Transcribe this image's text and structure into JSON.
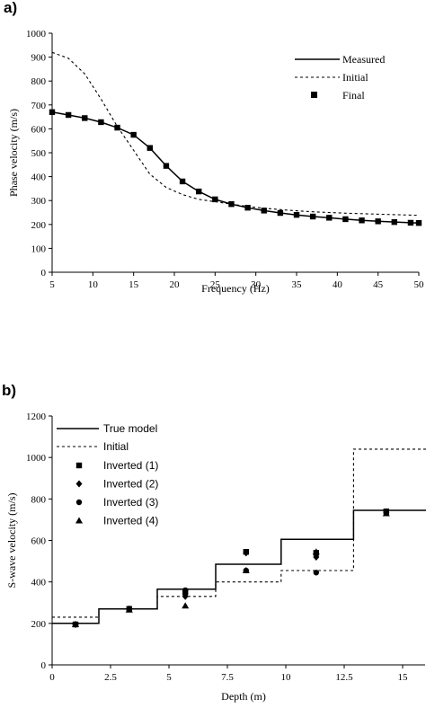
{
  "chart_data": [
    {
      "type": "line",
      "panel_label": "a)",
      "title": "",
      "xlabel": "Frequency (Hz)",
      "ylabel": "Phase velocity (m/s)",
      "xlim": [
        5,
        50
      ],
      "ylim": [
        0,
        1000
      ],
      "xticks": [
        5,
        10,
        15,
        20,
        25,
        30,
        35,
        40,
        45,
        50
      ],
      "yticks": [
        0,
        100,
        200,
        300,
        400,
        500,
        600,
        700,
        800,
        900,
        1000
      ],
      "grid": false,
      "legend_position": "top-right",
      "series": [
        {
          "name": "Measured",
          "style": "solid",
          "x": [
            5,
            7,
            9,
            11,
            13,
            15,
            17,
            19,
            21,
            23,
            25,
            27,
            29,
            31,
            33,
            35,
            37,
            39,
            41,
            43,
            45,
            47,
            49,
            50
          ],
          "y": [
            670,
            658,
            645,
            628,
            605,
            575,
            520,
            445,
            380,
            338,
            305,
            285,
            270,
            258,
            248,
            240,
            233,
            228,
            222,
            217,
            213,
            210,
            207,
            206
          ]
        },
        {
          "name": "Initial",
          "style": "dashed",
          "x": [
            5,
            7,
            9,
            11,
            13,
            15,
            17,
            19,
            21,
            23,
            25,
            27,
            29,
            31,
            33,
            35,
            37,
            39,
            41,
            43,
            45,
            47,
            49,
            50
          ],
          "y": [
            920,
            895,
            830,
            725,
            610,
            510,
            410,
            355,
            325,
            305,
            295,
            285,
            275,
            268,
            262,
            257,
            253,
            250,
            247,
            245,
            243,
            241,
            239,
            238
          ]
        },
        {
          "name": "Final",
          "style": "square-markers",
          "x": [
            5,
            7,
            9,
            11,
            13,
            15,
            17,
            19,
            21,
            23,
            25,
            27,
            29,
            31,
            33,
            35,
            37,
            39,
            41,
            43,
            45,
            47,
            49,
            50
          ],
          "y": [
            670,
            658,
            645,
            628,
            605,
            575,
            520,
            445,
            380,
            338,
            305,
            285,
            270,
            258,
            248,
            240,
            233,
            228,
            222,
            217,
            213,
            210,
            207,
            206
          ]
        }
      ]
    },
    {
      "type": "line",
      "panel_label": "b)",
      "title": "",
      "xlabel": "Depth (m)",
      "ylabel": "S-wave velocity (m/s)",
      "xlim": [
        0,
        16
      ],
      "ylim": [
        0,
        1200
      ],
      "xticks": [
        0,
        2.5,
        5,
        7.5,
        10,
        12.5,
        15
      ],
      "xtick_labels": [
        "0",
        "2.5",
        "5",
        "7.5",
        "10",
        "12.5",
        "15"
      ],
      "yticks": [
        0,
        200,
        400,
        600,
        800,
        1000,
        1200
      ],
      "grid": false,
      "legend_position": "top-left",
      "series": [
        {
          "name": "True model",
          "style": "step-solid",
          "x": [
            0,
            2,
            2,
            4.5,
            4.5,
            7,
            7,
            9.8,
            9.8,
            12.9,
            12.9,
            16
          ],
          "y": [
            200,
            200,
            270,
            270,
            365,
            365,
            485,
            485,
            605,
            605,
            745,
            745
          ]
        },
        {
          "name": "Initial",
          "style": "step-dashed",
          "x": [
            0,
            2,
            2,
            4.5,
            4.5,
            7,
            7,
            9.8,
            9.8,
            12.9,
            12.9,
            16
          ],
          "y": [
            230,
            230,
            270,
            270,
            330,
            330,
            400,
            400,
            455,
            455,
            1040,
            1040
          ]
        },
        {
          "name": "Inverted (1)",
          "marker": "square",
          "x": [
            1,
            3.3,
            5.7,
            8.3,
            11.3,
            14.3
          ],
          "y": [
            195,
            270,
            350,
            545,
            540,
            740
          ]
        },
        {
          "name": "Inverted (2)",
          "marker": "diamond",
          "x": [
            1,
            3.3,
            5.7,
            8.3,
            11.3,
            14.3
          ],
          "y": [
            195,
            270,
            330,
            540,
            520,
            735
          ]
        },
        {
          "name": "Inverted (3)",
          "marker": "circle",
          "x": [
            1,
            3.3,
            5.7,
            8.3,
            11.3,
            14.3
          ],
          "y": [
            195,
            270,
            360,
            455,
            445,
            740
          ]
        },
        {
          "name": "Inverted (4)",
          "marker": "triangle",
          "x": [
            1,
            3.3,
            5.7,
            8.3,
            11.3,
            14.3
          ],
          "y": [
            195,
            265,
            285,
            455,
            545,
            730
          ]
        }
      ]
    }
  ]
}
